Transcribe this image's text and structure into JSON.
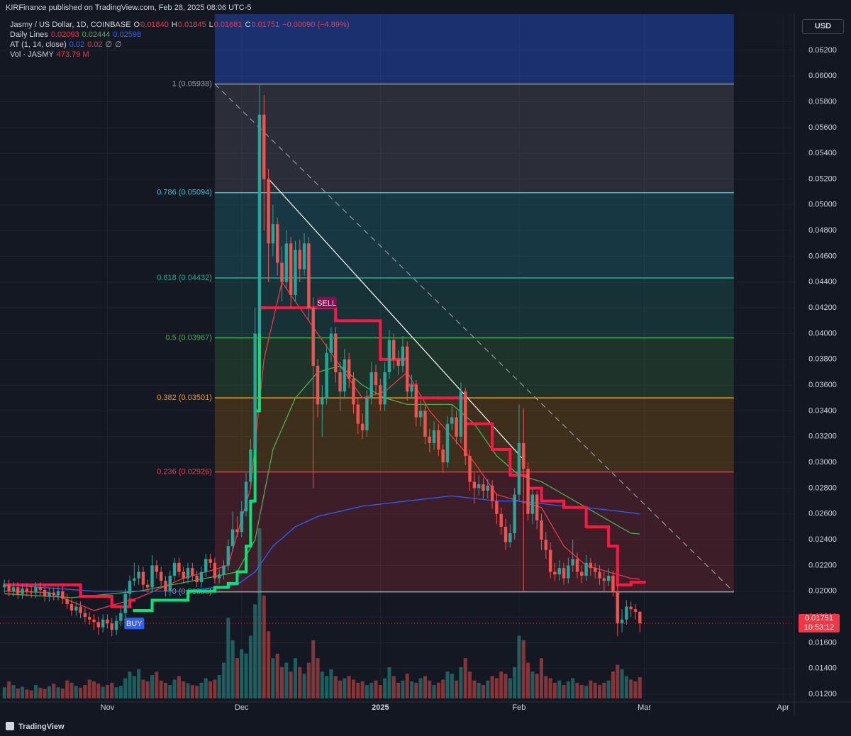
{
  "header": {
    "publisher": "KIRFinance published on TradingView.com, Feb 28, 2025 08:06 UTC-5"
  },
  "footer": {
    "brand": "TradingView"
  },
  "chart_data": {
    "type": "candlestick",
    "symbol": "Jasmy / US Dollar, 1D, COINBASE",
    "currency": "USD",
    "ohlc_legend": [
      {
        "key": "O",
        "value": "0.01840"
      },
      {
        "key": "H",
        "value": "0.01845"
      },
      {
        "key": "L",
        "value": "0.01681"
      },
      {
        "key": "C",
        "value": "0.01751"
      }
    ],
    "change": "−0.00090 (−4.89%)",
    "indicators": [
      {
        "title": "Daily Lines",
        "values": [
          "0.02093",
          "0.02444",
          "0.02598"
        ],
        "value_colors": [
          "#f23645",
          "#4caf50",
          "#2962ff"
        ]
      },
      {
        "title": "AT (1, 14, close)",
        "values": [
          "0.02",
          "0.02",
          "∅",
          "∅"
        ],
        "value_colors": [
          "#2962ff",
          "#f23645",
          "#b2b5be",
          "#b2b5be"
        ]
      },
      {
        "title": "Vol · JASMY",
        "values": [
          "473.79 M"
        ],
        "value_colors": [
          "#f23645"
        ]
      }
    ],
    "up_color": "#26a69a",
    "down_color": "#ef5350",
    "xlim": [
      -1,
      176.5
    ],
    "xticks": [
      {
        "value": 23,
        "label": "Nov"
      },
      {
        "value": 53,
        "label": "Dec"
      },
      {
        "value": 84,
        "label": "2025"
      },
      {
        "value": 115,
        "label": "Feb"
      },
      {
        "value": 143,
        "label": "Mar"
      },
      {
        "value": 174,
        "label": "Apr"
      }
    ],
    "ylim": [
      0.0114,
      0.0648
    ],
    "yticks": [
      {
        "value": 0.012,
        "label": "0.01200"
      },
      {
        "value": 0.014,
        "label": "0.01400"
      },
      {
        "value": 0.016,
        "label": "0.01600"
      },
      {
        "value": 0.018,
        "label": "0.01800"
      },
      {
        "value": 0.02,
        "label": "0.02000"
      },
      {
        "value": 0.022,
        "label": "0.02200"
      },
      {
        "value": 0.024,
        "label": "0.02400"
      },
      {
        "value": 0.026,
        "label": "0.02600"
      },
      {
        "value": 0.028,
        "label": "0.02800"
      },
      {
        "value": 0.03,
        "label": "0.03000"
      },
      {
        "value": 0.032,
        "label": "0.03200"
      },
      {
        "value": 0.034,
        "label": "0.03400"
      },
      {
        "value": 0.036,
        "label": "0.03600"
      },
      {
        "value": 0.038,
        "label": "0.03800"
      },
      {
        "value": 0.04,
        "label": "0.04000"
      },
      {
        "value": 0.042,
        "label": "0.04200"
      },
      {
        "value": 0.044,
        "label": "0.04400"
      },
      {
        "value": 0.046,
        "label": "0.04600"
      },
      {
        "value": 0.048,
        "label": "0.04800"
      },
      {
        "value": 0.05,
        "label": "0.05000"
      },
      {
        "value": 0.052,
        "label": "0.05200"
      },
      {
        "value": 0.054,
        "label": "0.05400"
      },
      {
        "value": 0.056,
        "label": "0.05600"
      },
      {
        "value": 0.058,
        "label": "0.05800"
      },
      {
        "value": 0.06,
        "label": "0.06000"
      },
      {
        "value": 0.062,
        "label": "0.06200"
      }
    ],
    "grid": true,
    "open": [
      0.0203,
      0.0205,
      0.02,
      0.0203,
      0.0198,
      0.0202,
      0.02,
      0.0199,
      0.0203,
      0.0201,
      0.0196,
      0.0199,
      0.0197,
      0.02,
      0.0194,
      0.019,
      0.0185,
      0.0188,
      0.0183,
      0.018,
      0.0178,
      0.0176,
      0.0172,
      0.0178,
      0.0175,
      0.017,
      0.0177,
      0.0183,
      0.0198,
      0.0208,
      0.021,
      0.0215,
      0.0205,
      0.0203,
      0.022,
      0.0215,
      0.0208,
      0.02,
      0.0212,
      0.0222,
      0.0215,
      0.021,
      0.0218,
      0.0212,
      0.0207,
      0.0215,
      0.0225,
      0.0222,
      0.021,
      0.0213,
      0.022,
      0.0235,
      0.0248,
      0.0246,
      0.0262,
      0.0285,
      0.031,
      0.04,
      0.057,
      0.052,
      0.047,
      0.0485,
      0.0455,
      0.044,
      0.047,
      0.043,
      0.0465,
      0.045,
      0.047,
      0.042,
      0.0375,
      0.0345,
      0.035,
      0.0385,
      0.04,
      0.037,
      0.0355,
      0.038,
      0.0365,
      0.0345,
      0.033,
      0.0325,
      0.035,
      0.037,
      0.036,
      0.0345,
      0.037,
      0.0395,
      0.038,
      0.0375,
      0.039,
      0.0355,
      0.036,
      0.0335,
      0.034,
      0.032,
      0.0315,
      0.0325,
      0.031,
      0.03,
      0.033,
      0.0335,
      0.032,
      0.0355,
      0.0305,
      0.0285,
      0.028,
      0.0283,
      0.0278,
      0.0282,
      0.027,
      0.026,
      0.025,
      0.0238,
      0.0245,
      0.0275,
      0.0315,
      0.0295,
      0.026,
      0.0275,
      0.0255,
      0.024,
      0.0232,
      0.0215,
      0.0213,
      0.0218,
      0.021,
      0.022,
      0.0225,
      0.0215,
      0.0212,
      0.0222,
      0.0218,
      0.0215,
      0.021,
      0.0208,
      0.0212,
      0.02,
      0.0175,
      0.0178,
      0.0188,
      0.0186,
      0.0184
    ],
    "high": [
      0.0209,
      0.0209,
      0.0207,
      0.0207,
      0.0206,
      0.0206,
      0.0204,
      0.0207,
      0.0207,
      0.0205,
      0.0203,
      0.0203,
      0.0204,
      0.0204,
      0.0198,
      0.0194,
      0.0192,
      0.0192,
      0.0187,
      0.0184,
      0.0182,
      0.018,
      0.0182,
      0.0182,
      0.0179,
      0.0181,
      0.0187,
      0.0202,
      0.0212,
      0.0222,
      0.022,
      0.0219,
      0.0209,
      0.0228,
      0.0224,
      0.0219,
      0.0212,
      0.0216,
      0.0226,
      0.0226,
      0.0219,
      0.0222,
      0.0222,
      0.0216,
      0.0219,
      0.0229,
      0.0229,
      0.0226,
      0.0217,
      0.0224,
      0.024,
      0.0262,
      0.0258,
      0.027,
      0.0292,
      0.0318,
      0.042,
      0.0593,
      0.0585,
      0.0528,
      0.05,
      0.049,
      0.0468,
      0.048,
      0.0475,
      0.0472,
      0.0473,
      0.0478,
      0.0475,
      0.0428,
      0.038,
      0.036,
      0.0392,
      0.0405,
      0.0405,
      0.0378,
      0.0388,
      0.0385,
      0.037,
      0.035,
      0.0338,
      0.0356,
      0.0378,
      0.0376,
      0.0365,
      0.0378,
      0.0403,
      0.04,
      0.0387,
      0.0398,
      0.0394,
      0.0368,
      0.0364,
      0.0348,
      0.0345,
      0.0326,
      0.0332,
      0.033,
      0.0314,
      0.0336,
      0.0345,
      0.034,
      0.0362,
      0.0358,
      0.031,
      0.0292,
      0.029,
      0.0288,
      0.0287,
      0.0286,
      0.0276,
      0.0265,
      0.0256,
      0.0252,
      0.028,
      0.0345,
      0.0342,
      0.03,
      0.028,
      0.0278,
      0.026,
      0.0246,
      0.0238,
      0.0222,
      0.0224,
      0.0222,
      0.0226,
      0.024,
      0.023,
      0.022,
      0.0228,
      0.0226,
      0.0222,
      0.022,
      0.0215,
      0.0218,
      0.0216,
      0.0205,
      0.0186,
      0.0193,
      0.0192,
      0.019,
      0.01845
    ],
    "low": [
      0.0199,
      0.0196,
      0.0196,
      0.0194,
      0.0194,
      0.0196,
      0.0195,
      0.0195,
      0.0197,
      0.0192,
      0.0192,
      0.0193,
      0.0193,
      0.019,
      0.0186,
      0.0181,
      0.0181,
      0.0179,
      0.0176,
      0.0174,
      0.017,
      0.0166,
      0.0168,
      0.0171,
      0.0165,
      0.0166,
      0.0173,
      0.0179,
      0.0194,
      0.0204,
      0.0205,
      0.0201,
      0.0199,
      0.0199,
      0.021,
      0.0204,
      0.0196,
      0.0196,
      0.0208,
      0.0211,
      0.0206,
      0.0206,
      0.0208,
      0.0203,
      0.0203,
      0.0211,
      0.0218,
      0.0206,
      0.0206,
      0.0209,
      0.0216,
      0.0231,
      0.0242,
      0.0242,
      0.0258,
      0.028,
      0.0305,
      0.0392,
      0.048,
      0.044,
      0.046,
      0.0445,
      0.0425,
      0.0435,
      0.042,
      0.0425,
      0.044,
      0.0445,
      0.041,
      0.028,
      0.0335,
      0.032,
      0.0345,
      0.0378,
      0.0362,
      0.034,
      0.035,
      0.0358,
      0.0338,
      0.0322,
      0.0318,
      0.032,
      0.0345,
      0.0352,
      0.034,
      0.034,
      0.0365,
      0.0372,
      0.0368,
      0.037,
      0.0348,
      0.035,
      0.0328,
      0.0328,
      0.0314,
      0.0308,
      0.031,
      0.0305,
      0.0292,
      0.0296,
      0.0325,
      0.0314,
      0.0315,
      0.0298,
      0.0278,
      0.0268,
      0.0274,
      0.0272,
      0.0272,
      0.0264,
      0.0252,
      0.0244,
      0.0232,
      0.0234,
      0.024,
      0.027,
      0.02,
      0.0255,
      0.0252,
      0.0248,
      0.0232,
      0.0225,
      0.021,
      0.0208,
      0.0208,
      0.0205,
      0.0206,
      0.0215,
      0.021,
      0.0206,
      0.0208,
      0.0212,
      0.021,
      0.0205,
      0.02,
      0.0204,
      0.0196,
      0.0165,
      0.0168,
      0.0174,
      0.018,
      0.0178,
      0.01681
    ],
    "close": [
      0.0205,
      0.02,
      0.0203,
      0.0198,
      0.0202,
      0.02,
      0.0199,
      0.0203,
      0.0201,
      0.0196,
      0.0199,
      0.0197,
      0.02,
      0.0194,
      0.019,
      0.0185,
      0.0188,
      0.0183,
      0.018,
      0.0178,
      0.0176,
      0.0172,
      0.0178,
      0.0175,
      0.017,
      0.0177,
      0.0183,
      0.0198,
      0.0208,
      0.021,
      0.0215,
      0.0205,
      0.0203,
      0.022,
      0.0215,
      0.0208,
      0.02,
      0.0212,
      0.0222,
      0.0215,
      0.021,
      0.0218,
      0.0212,
      0.0207,
      0.0215,
      0.0225,
      0.0222,
      0.021,
      0.0213,
      0.022,
      0.0235,
      0.0248,
      0.0246,
      0.0262,
      0.0285,
      0.031,
      0.04,
      0.057,
      0.052,
      0.047,
      0.0485,
      0.0455,
      0.044,
      0.047,
      0.043,
      0.0465,
      0.045,
      0.047,
      0.042,
      0.0375,
      0.0345,
      0.035,
      0.0385,
      0.04,
      0.037,
      0.0355,
      0.038,
      0.0365,
      0.0345,
      0.033,
      0.0325,
      0.035,
      0.037,
      0.036,
      0.0345,
      0.037,
      0.0395,
      0.038,
      0.0375,
      0.039,
      0.0355,
      0.036,
      0.0335,
      0.034,
      0.032,
      0.0315,
      0.0325,
      0.031,
      0.03,
      0.033,
      0.0335,
      0.032,
      0.0355,
      0.0305,
      0.0285,
      0.028,
      0.0283,
      0.0278,
      0.0282,
      0.027,
      0.026,
      0.025,
      0.0238,
      0.0245,
      0.0275,
      0.0315,
      0.0295,
      0.026,
      0.0275,
      0.0255,
      0.024,
      0.0232,
      0.0215,
      0.0213,
      0.0218,
      0.021,
      0.022,
      0.0225,
      0.0215,
      0.0212,
      0.0222,
      0.0218,
      0.0215,
      0.021,
      0.0208,
      0.0212,
      0.02,
      0.0175,
      0.0178,
      0.0188,
      0.0186,
      0.0184,
      0.01751
    ],
    "volume": [
      250,
      380,
      300,
      220,
      260,
      200,
      180,
      300,
      240,
      210,
      270,
      330,
      250,
      220,
      400,
      350,
      280,
      240,
      300,
      420,
      380,
      330,
      260,
      300,
      350,
      250,
      280,
      450,
      600,
      500,
      650,
      420,
      380,
      520,
      600,
      400,
      350,
      300,
      420,
      500,
      380,
      340,
      300,
      280,
      350,
      450,
      380,
      420,
      520,
      800,
      1800,
      1300,
      900,
      1100,
      1000,
      1400,
      2100,
      3800,
      2300,
      1500,
      900,
      1000,
      700,
      800,
      600,
      900,
      700,
      550,
      800,
      1300,
      900,
      600,
      500,
      650,
      500,
      400,
      450,
      500,
      420,
      350,
      380,
      300,
      350,
      400,
      300,
      450,
      700,
      500,
      350,
      400,
      550,
      380,
      350,
      450,
      500,
      400,
      300,
      350,
      420,
      600,
      550,
      400,
      700,
      900,
      600,
      400,
      350,
      300,
      400,
      500,
      450,
      600,
      550,
      450,
      700,
      1400,
      1300,
      800,
      600,
      550,
      900,
      500,
      450,
      350,
      400,
      300,
      380,
      450,
      350,
      300,
      280,
      400,
      350,
      300,
      350,
      400,
      600,
      750,
      650,
      500,
      420,
      380,
      474
    ],
    "lines": [
      {
        "color": "#f23645",
        "x": [
          0,
          10,
          20,
          30,
          40,
          50,
          55,
          58,
          62,
          66,
          70,
          75,
          80,
          85,
          90,
          95,
          100,
          105,
          110,
          115,
          120,
          125,
          130,
          135,
          140,
          142
        ],
        "values": [
          0.02,
          0.0199,
          0.0185,
          0.0195,
          0.021,
          0.022,
          0.028,
          0.038,
          0.044,
          0.042,
          0.04,
          0.0375,
          0.035,
          0.0355,
          0.037,
          0.034,
          0.032,
          0.03,
          0.0275,
          0.027,
          0.0265,
          0.0235,
          0.022,
          0.0215,
          0.021,
          0.02093
        ]
      },
      {
        "color": "#4caf50",
        "x": [
          0,
          15,
          30,
          45,
          52,
          56,
          60,
          65,
          70,
          75,
          80,
          85,
          90,
          95,
          100,
          105,
          110,
          115,
          120,
          125,
          130,
          135,
          140,
          142
        ],
        "values": [
          0.0198,
          0.0195,
          0.02,
          0.021,
          0.0215,
          0.024,
          0.031,
          0.035,
          0.037,
          0.0375,
          0.036,
          0.035,
          0.0345,
          0.0345,
          0.0345,
          0.033,
          0.0305,
          0.029,
          0.0285,
          0.0275,
          0.0265,
          0.0255,
          0.0245,
          0.02444
        ]
      },
      {
        "color": "#2962ff",
        "x": [
          0,
          20,
          40,
          52,
          56,
          60,
          65,
          70,
          75,
          80,
          85,
          90,
          95,
          100,
          105,
          110,
          115,
          120,
          125,
          130,
          135,
          140,
          142
        ],
        "values": [
          0.0205,
          0.02,
          0.02,
          0.0205,
          0.0215,
          0.0235,
          0.025,
          0.0258,
          0.0262,
          0.0266,
          0.0268,
          0.027,
          0.0272,
          0.0274,
          0.0272,
          0.027,
          0.027,
          0.0268,
          0.0266,
          0.0265,
          0.0263,
          0.0261,
          0.02598
        ]
      }
    ],
    "trail": [
      {
        "color": "#ff1744",
        "x": [
          0,
          13,
          17,
          24,
          28
        ],
        "values": [
          0.0205,
          0.0205,
          0.0196,
          0.0188,
          0.0193
        ]
      },
      {
        "color": "#00e676",
        "x": [
          29,
          33,
          41,
          47,
          50,
          52,
          54,
          55,
          56,
          57
        ],
        "values": [
          0.0185,
          0.0193,
          0.02,
          0.0203,
          0.0206,
          0.0215,
          0.0235,
          0.027,
          0.034,
          0.042
        ]
      },
      {
        "color": "#ff1744",
        "x": [
          57,
          70,
          74,
          78,
          84,
          89,
          90,
          92,
          97,
          100,
          103,
          109,
          113,
          117,
          120,
          125,
          130,
          135,
          137,
          140,
          142
        ],
        "values": [
          0.042,
          0.042,
          0.041,
          0.041,
          0.038,
          0.038,
          0.036,
          0.035,
          0.035,
          0.035,
          0.033,
          0.031,
          0.029,
          0.028,
          0.027,
          0.0265,
          0.025,
          0.0235,
          0.0205,
          0.0207,
          0.0207
        ]
      }
    ],
    "fib": {
      "x_range": [
        47,
        163
      ],
      "top_zone": {
        "color": "#2962ff",
        "price": [
          0.05938,
          0.066
        ]
      },
      "levels": [
        {
          "label": "1 (0.05938)",
          "price": 0.05938,
          "color": "#9598a1"
        },
        {
          "label": "0.786 (0.05094)",
          "price": 0.05094,
          "color": "#26c6da"
        },
        {
          "label": "0.618 (0.04432)",
          "price": 0.04432,
          "color": "#22ab94"
        },
        {
          "label": "0.5 (0.03967)",
          "price": 0.03967,
          "color": "#4caf50"
        },
        {
          "label": "0.382 (0.03501)",
          "price": 0.03501,
          "color": "#ff9800"
        },
        {
          "label": "0.236 (0.02926)",
          "price": 0.02926,
          "color": "#f23645"
        },
        {
          "label": "0 (0.01995)",
          "price": 0.01995,
          "color": "#9598a1"
        }
      ]
    },
    "trendlines": [
      {
        "x": [
          59.2,
          116.3
        ],
        "price": [
          0.05194,
          0.0301
        ],
        "color": "#ffffff",
        "dashed": false
      },
      {
        "x": [
          47,
          163
        ],
        "price": [
          0.05938,
          0.01995
        ],
        "color": "#9598a1",
        "dashed": true
      }
    ],
    "signals": [
      {
        "label": "SELL",
        "x": 72,
        "price": 0.0424,
        "color": "#880e4f"
      },
      {
        "label": "BUY",
        "x": 29,
        "price": 0.0175,
        "color": "#2962ff"
      }
    ],
    "price_tag": {
      "value": 0.01751,
      "label": "0.01751",
      "countdown": "10:53:12",
      "color": "#f23645"
    }
  }
}
